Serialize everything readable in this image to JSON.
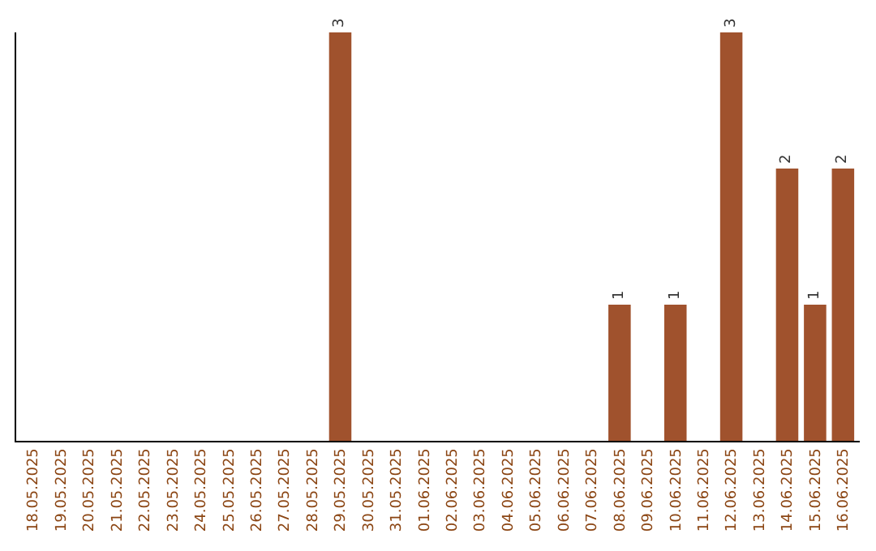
{
  "chart_data": {
    "type": "bar",
    "categories": [
      "18.05.2025",
      "19.05.2025",
      "20.05.2025",
      "21.05.2025",
      "22.05.2025",
      "23.05.2025",
      "24.05.2025",
      "25.05.2025",
      "26.05.2025",
      "27.05.2025",
      "28.05.2025",
      "29.05.2025",
      "30.05.2025",
      "31.05.2025",
      "01.06.2025",
      "02.06.2025",
      "03.06.2025",
      "04.06.2025",
      "05.06.2025",
      "06.06.2025",
      "07.06.2025",
      "08.06.2025",
      "09.06.2025",
      "10.06.2025",
      "11.06.2025",
      "12.06.2025",
      "13.06.2025",
      "14.06.2025",
      "15.06.2025",
      "16.06.2025"
    ],
    "values": [
      0,
      0,
      0,
      0,
      0,
      0,
      0,
      0,
      0,
      0,
      0,
      3,
      0,
      0,
      0,
      0,
      0,
      0,
      0,
      0,
      0,
      1,
      0,
      1,
      0,
      3,
      0,
      2,
      1,
      2
    ],
    "value_labels": [
      null,
      null,
      null,
      null,
      null,
      null,
      null,
      null,
      null,
      null,
      null,
      "3",
      null,
      null,
      null,
      null,
      null,
      null,
      null,
      null,
      null,
      "1",
      null,
      "1",
      null,
      "3",
      null,
      "2",
      "1",
      "2"
    ],
    "color": "#a0522d",
    "legend": false,
    "tick_labels": "x"
  }
}
